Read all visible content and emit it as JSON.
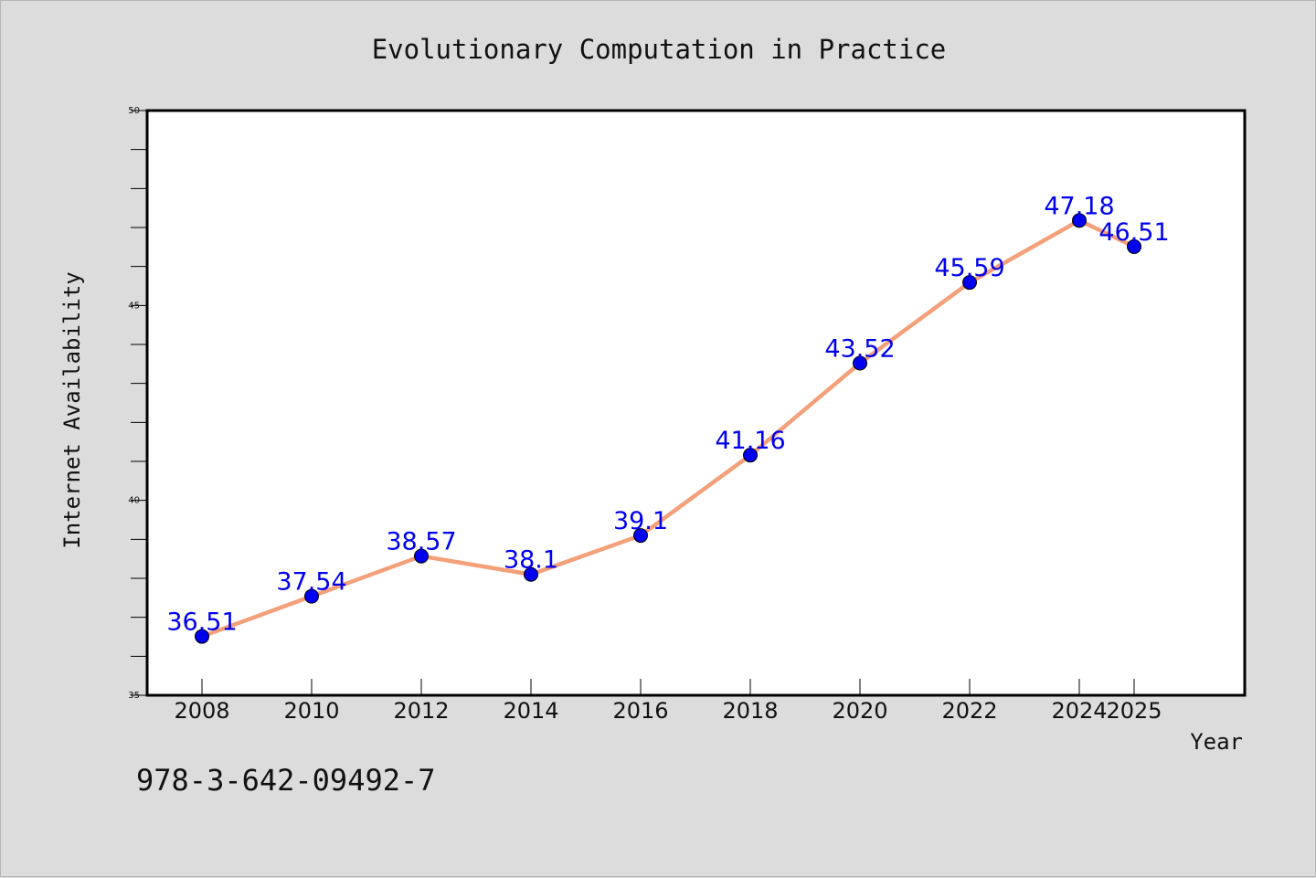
{
  "chart_data": {
    "type": "line",
    "title": "Evolutionary Computation in Practice",
    "xlabel": "Year",
    "ylabel": "Internet Availability",
    "categories": [
      "2008",
      "2010",
      "2012",
      "2014",
      "2016",
      "2018",
      "2020",
      "2022",
      "2024",
      "2025"
    ],
    "series": [
      {
        "values": [
          36.51,
          37.54,
          38.57,
          38.1,
          39.1,
          41.16,
          43.52,
          45.59,
          47.18,
          46.51
        ],
        "labels": [
          "36.51",
          "37.54",
          "38.57",
          "38.1",
          "39.1",
          "41.16",
          "43.52",
          "45.59",
          "47.18",
          "46.51"
        ],
        "line_color": "#f4a07a",
        "marker_color": "#0000ee",
        "label_color": "#0000ee"
      }
    ],
    "ylim": [
      35,
      50
    ],
    "yticks": [
      "35",
      "40",
      "45",
      "50"
    ],
    "grid": false,
    "legend": "none"
  },
  "footer_text": "978-3-642-09492-7"
}
